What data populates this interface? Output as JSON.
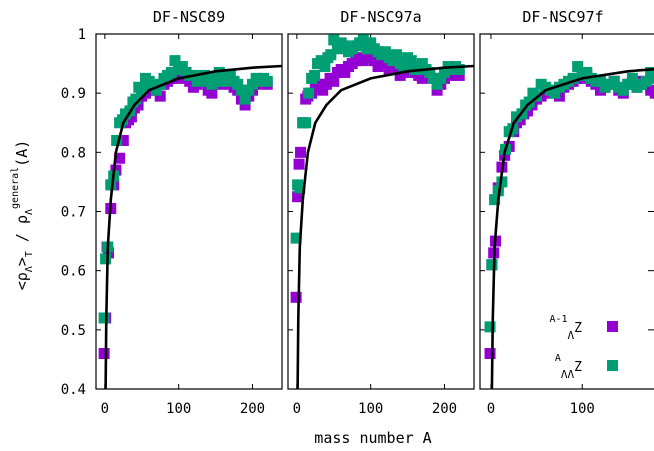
{
  "chart_data": {
    "type": "scatter",
    "xlabel": "mass number A",
    "ylabel": "<ρΛ>T / ρΛ general (A)",
    "ylim": [
      0.4,
      1.0
    ],
    "xlim": [
      -12,
      240
    ],
    "y_ticks": [
      "0.4",
      "0.5",
      "0.6",
      "0.7",
      "0.8",
      "0.9",
      "1"
    ],
    "x_ticks": [
      "0",
      "100",
      "200"
    ],
    "legend": {
      "position": "bottom-right of third panel",
      "entries": [
        {
          "label": "A-1 Λ Z",
          "color": "#9400d3"
        },
        {
          "label": "A ΛΛ Z",
          "color": "#009e73"
        }
      ]
    },
    "series_colors": {
      "single": "#9400d3",
      "double": "#009e73",
      "curve": "#000000"
    },
    "fit_curve": {
      "description": "black fit curve",
      "points": [
        [
          1,
          0.4
        ],
        [
          2,
          0.52
        ],
        [
          4,
          0.64
        ],
        [
          8,
          0.72
        ],
        [
          15,
          0.8
        ],
        [
          25,
          0.85
        ],
        [
          40,
          0.88
        ],
        [
          60,
          0.905
        ],
        [
          100,
          0.925
        ],
        [
          150,
          0.937
        ],
        [
          200,
          0.943
        ],
        [
          240,
          0.946
        ]
      ]
    },
    "panels": [
      {
        "title": "DF-NSC89",
        "single": [
          [
            -1,
            0.46
          ],
          [
            1,
            0.52
          ],
          [
            3,
            0.64
          ],
          [
            5,
            0.63
          ],
          [
            8,
            0.705
          ],
          [
            12,
            0.745
          ],
          [
            15,
            0.77
          ],
          [
            20,
            0.79
          ],
          [
            25,
            0.82
          ],
          [
            28,
            0.85
          ],
          [
            32,
            0.855
          ],
          [
            36,
            0.86
          ],
          [
            40,
            0.875
          ],
          [
            45,
            0.88
          ],
          [
            50,
            0.895
          ],
          [
            55,
            0.9
          ],
          [
            60,
            0.91
          ],
          [
            65,
            0.905
          ],
          [
            70,
            0.905
          ],
          [
            75,
            0.895
          ],
          [
            80,
            0.915
          ],
          [
            85,
            0.92
          ],
          [
            90,
            0.925
          ],
          [
            95,
            0.925
          ],
          [
            100,
            0.93
          ],
          [
            105,
            0.935
          ],
          [
            110,
            0.925
          ],
          [
            115,
            0.92
          ],
          [
            120,
            0.91
          ],
          [
            125,
            0.915
          ],
          [
            130,
            0.92
          ],
          [
            135,
            0.925
          ],
          [
            140,
            0.905
          ],
          [
            145,
            0.9
          ],
          [
            150,
            0.92
          ],
          [
            155,
            0.925
          ],
          [
            160,
            0.915
          ],
          [
            165,
            0.925
          ],
          [
            170,
            0.92
          ],
          [
            175,
            0.91
          ],
          [
            180,
            0.905
          ],
          [
            185,
            0.89
          ],
          [
            190,
            0.88
          ],
          [
            195,
            0.895
          ],
          [
            200,
            0.905
          ],
          [
            205,
            0.915
          ],
          [
            210,
            0.92
          ],
          [
            215,
            0.92
          ],
          [
            220,
            0.915
          ]
        ],
        "double": [
          [
            -1,
            0.52
          ],
          [
            1,
            0.62
          ],
          [
            4,
            0.64
          ],
          [
            8,
            0.745
          ],
          [
            12,
            0.76
          ],
          [
            16,
            0.82
          ],
          [
            20,
            0.85
          ],
          [
            24,
            0.855
          ],
          [
            28,
            0.865
          ],
          [
            34,
            0.87
          ],
          [
            38,
            0.885
          ],
          [
            42,
            0.89
          ],
          [
            46,
            0.91
          ],
          [
            50,
            0.905
          ],
          [
            55,
            0.925
          ],
          [
            60,
            0.92
          ],
          [
            65,
            0.915
          ],
          [
            70,
            0.905
          ],
          [
            75,
            0.915
          ],
          [
            80,
            0.925
          ],
          [
            85,
            0.93
          ],
          [
            90,
            0.935
          ],
          [
            95,
            0.955
          ],
          [
            100,
            0.94
          ],
          [
            105,
            0.945
          ],
          [
            110,
            0.935
          ],
          [
            115,
            0.93
          ],
          [
            120,
            0.93
          ],
          [
            125,
            0.92
          ],
          [
            130,
            0.925
          ],
          [
            135,
            0.93
          ],
          [
            140,
            0.92
          ],
          [
            145,
            0.915
          ],
          [
            150,
            0.925
          ],
          [
            155,
            0.935
          ],
          [
            160,
            0.92
          ],
          [
            165,
            0.925
          ],
          [
            170,
            0.93
          ],
          [
            175,
            0.92
          ],
          [
            180,
            0.915
          ],
          [
            185,
            0.905
          ],
          [
            190,
            0.89
          ],
          [
            195,
            0.905
          ],
          [
            200,
            0.915
          ],
          [
            205,
            0.925
          ],
          [
            210,
            0.92
          ],
          [
            215,
            0.925
          ],
          [
            220,
            0.92
          ]
        ]
      },
      {
        "title": "DF-NSC97a",
        "single": [
          [
            -1,
            0.555
          ],
          [
            1,
            0.725
          ],
          [
            3,
            0.78
          ],
          [
            5,
            0.8
          ],
          [
            8,
            0.85
          ],
          [
            12,
            0.89
          ],
          [
            15,
            0.895
          ],
          [
            20,
            0.9
          ],
          [
            25,
            0.91
          ],
          [
            30,
            0.915
          ],
          [
            35,
            0.905
          ],
          [
            40,
            0.915
          ],
          [
            45,
            0.925
          ],
          [
            50,
            0.92
          ],
          [
            55,
            0.935
          ],
          [
            60,
            0.94
          ],
          [
            65,
            0.935
          ],
          [
            70,
            0.945
          ],
          [
            75,
            0.95
          ],
          [
            80,
            0.955
          ],
          [
            85,
            0.96
          ],
          [
            90,
            0.955
          ],
          [
            95,
            0.965
          ],
          [
            100,
            0.96
          ],
          [
            105,
            0.955
          ],
          [
            110,
            0.945
          ],
          [
            115,
            0.95
          ],
          [
            120,
            0.955
          ],
          [
            125,
            0.94
          ],
          [
            130,
            0.945
          ],
          [
            135,
            0.95
          ],
          [
            140,
            0.93
          ],
          [
            145,
            0.935
          ],
          [
            150,
            0.945
          ],
          [
            155,
            0.94
          ],
          [
            160,
            0.935
          ],
          [
            165,
            0.93
          ],
          [
            170,
            0.925
          ],
          [
            175,
            0.935
          ],
          [
            180,
            0.93
          ],
          [
            185,
            0.925
          ],
          [
            190,
            0.905
          ],
          [
            195,
            0.915
          ],
          [
            200,
            0.925
          ],
          [
            205,
            0.935
          ],
          [
            210,
            0.93
          ],
          [
            215,
            0.935
          ],
          [
            220,
            0.93
          ]
        ],
        "double": [
          [
            -1,
            0.655
          ],
          [
            1,
            0.745
          ],
          [
            4,
            0.74
          ],
          [
            8,
            0.85
          ],
          [
            12,
            0.85
          ],
          [
            16,
            0.9
          ],
          [
            20,
            0.925
          ],
          [
            24,
            0.93
          ],
          [
            28,
            0.95
          ],
          [
            33,
            0.955
          ],
          [
            38,
            0.945
          ],
          [
            42,
            0.96
          ],
          [
            46,
            0.965
          ],
          [
            50,
            0.99
          ],
          [
            55,
            0.975
          ],
          [
            60,
            0.985
          ],
          [
            65,
            0.98
          ],
          [
            70,
            0.97
          ],
          [
            75,
            0.975
          ],
          [
            80,
            0.98
          ],
          [
            85,
            0.985
          ],
          [
            90,
            0.99
          ],
          [
            95,
            0.975
          ],
          [
            100,
            0.985
          ],
          [
            105,
            0.975
          ],
          [
            110,
            0.97
          ],
          [
            115,
            0.965
          ],
          [
            120,
            0.97
          ],
          [
            125,
            0.96
          ],
          [
            130,
            0.955
          ],
          [
            135,
            0.965
          ],
          [
            140,
            0.95
          ],
          [
            145,
            0.945
          ],
          [
            150,
            0.96
          ],
          [
            155,
            0.955
          ],
          [
            160,
            0.94
          ],
          [
            165,
            0.945
          ],
          [
            170,
            0.95
          ],
          [
            175,
            0.94
          ],
          [
            180,
            0.935
          ],
          [
            185,
            0.925
          ],
          [
            190,
            0.915
          ],
          [
            195,
            0.925
          ],
          [
            200,
            0.935
          ],
          [
            205,
            0.945
          ],
          [
            210,
            0.94
          ],
          [
            215,
            0.945
          ],
          [
            220,
            0.94
          ]
        ]
      },
      {
        "title": "DF-NSC97f",
        "single": [
          [
            -1,
            0.46
          ],
          [
            1,
            0.61
          ],
          [
            3,
            0.63
          ],
          [
            5,
            0.65
          ],
          [
            8,
            0.74
          ],
          [
            12,
            0.775
          ],
          [
            15,
            0.795
          ],
          [
            20,
            0.81
          ],
          [
            25,
            0.835
          ],
          [
            28,
            0.85
          ],
          [
            32,
            0.855
          ],
          [
            36,
            0.865
          ],
          [
            40,
            0.87
          ],
          [
            45,
            0.88
          ],
          [
            50,
            0.89
          ],
          [
            55,
            0.895
          ],
          [
            60,
            0.905
          ],
          [
            65,
            0.9
          ],
          [
            70,
            0.905
          ],
          [
            75,
            0.895
          ],
          [
            80,
            0.91
          ],
          [
            85,
            0.915
          ],
          [
            90,
            0.92
          ],
          [
            95,
            0.925
          ],
          [
            100,
            0.925
          ],
          [
            105,
            0.93
          ],
          [
            110,
            0.92
          ],
          [
            115,
            0.915
          ],
          [
            120,
            0.905
          ],
          [
            125,
            0.91
          ],
          [
            130,
            0.915
          ],
          [
            135,
            0.92
          ],
          [
            140,
            0.905
          ],
          [
            145,
            0.9
          ],
          [
            150,
            0.915
          ],
          [
            155,
            0.92
          ],
          [
            160,
            0.91
          ],
          [
            165,
            0.92
          ],
          [
            170,
            0.915
          ],
          [
            175,
            0.905
          ],
          [
            180,
            0.9
          ],
          [
            185,
            0.885
          ],
          [
            190,
            0.875
          ],
          [
            195,
            0.89
          ],
          [
            200,
            0.9
          ],
          [
            205,
            0.91
          ],
          [
            210,
            0.915
          ],
          [
            215,
            0.915
          ],
          [
            220,
            0.915
          ]
        ],
        "double": [
          [
            -1,
            0.505
          ],
          [
            1,
            0.61
          ],
          [
            4,
            0.72
          ],
          [
            8,
            0.735
          ],
          [
            12,
            0.75
          ],
          [
            16,
            0.805
          ],
          [
            20,
            0.835
          ],
          [
            24,
            0.84
          ],
          [
            28,
            0.86
          ],
          [
            34,
            0.865
          ],
          [
            38,
            0.88
          ],
          [
            42,
            0.885
          ],
          [
            46,
            0.9
          ],
          [
            50,
            0.895
          ],
          [
            55,
            0.915
          ],
          [
            60,
            0.91
          ],
          [
            65,
            0.905
          ],
          [
            70,
            0.9
          ],
          [
            75,
            0.91
          ],
          [
            80,
            0.915
          ],
          [
            85,
            0.92
          ],
          [
            90,
            0.925
          ],
          [
            95,
            0.945
          ],
          [
            100,
            0.93
          ],
          [
            105,
            0.935
          ],
          [
            110,
            0.925
          ],
          [
            115,
            0.92
          ],
          [
            120,
            0.92
          ],
          [
            125,
            0.91
          ],
          [
            130,
            0.915
          ],
          [
            135,
            0.92
          ],
          [
            140,
            0.91
          ],
          [
            145,
            0.905
          ],
          [
            150,
            0.915
          ],
          [
            155,
            0.925
          ],
          [
            160,
            0.91
          ],
          [
            165,
            0.915
          ],
          [
            170,
            0.92
          ],
          [
            175,
            0.935
          ],
          [
            180,
            0.925
          ],
          [
            185,
            0.92
          ],
          [
            190,
            0.905
          ],
          [
            195,
            0.91
          ],
          [
            200,
            0.915
          ],
          [
            205,
            0.92
          ],
          [
            210,
            0.915
          ],
          [
            215,
            0.92
          ],
          [
            220,
            0.915
          ]
        ]
      }
    ]
  }
}
